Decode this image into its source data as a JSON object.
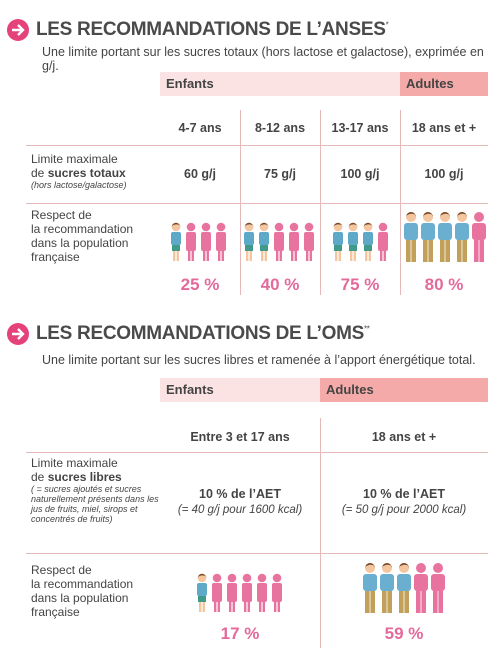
{
  "sections": [
    {
      "title": "LES RECOMMANDATIONS DE L’ANSES",
      "title_mark": "*",
      "subtitle": "Une limite portant sur les sucres totaux (hors lactose et galactose), exprimée en g/j.",
      "groups": [
        "Enfants",
        "Adultes"
      ],
      "columns": [
        "4-7 ans",
        "8-12 ans",
        "13-17 ans",
        "18 ans et +"
      ],
      "limit_label": [
        "Limite maximale",
        "de ",
        "sucres totaux",
        "(hors lactose/galactose)"
      ],
      "limits": [
        "60 g/j",
        "75 g/j",
        "100 g/j",
        "100 g/j"
      ],
      "respect_label": [
        "Respect de",
        "la recommandation",
        "dans la population",
        "française"
      ],
      "respect": [
        "25 %",
        "40 %",
        "75 %",
        "80 %"
      ]
    },
    {
      "title": "LES RECOMMANDATIONS DE L’OMS",
      "title_mark": "**",
      "subtitle": "Une limite portant sur les sucres libres et ramenée à l’apport énergétique total.",
      "groups": [
        "Enfants",
        "Adultes"
      ],
      "columns": [
        "Entre 3 et 17 ans",
        "18 ans et +"
      ],
      "limit_label": [
        "Limite maximale",
        "de ",
        "sucres libres",
        "( = sucres ajoutés et sucres naturellement présents dans les jus de fruits, miel, sirops et concentrés de fruits)"
      ],
      "limits": [
        [
          "10 % de l’AET",
          "(= 40 g/j pour 1600 kcal)"
        ],
        [
          "10 % de l’AET",
          "(= 50 g/j pour 2000 kcal)"
        ]
      ],
      "respect_label": [
        "Respect de",
        "la recommandation",
        "dans la population",
        "française"
      ],
      "respect": [
        "17 %",
        "59 %"
      ]
    }
  ]
}
